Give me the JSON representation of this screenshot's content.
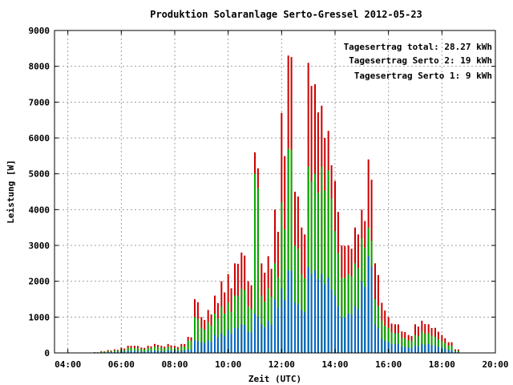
{
  "chart_data": {
    "type": "bar",
    "title": "Produktion Solaranlage Serto-Gressel 2012-05-23",
    "xlabel": "Zeit (UTC)",
    "ylabel": "Leistung [W]",
    "xlim": [
      3.5,
      20.0
    ],
    "ylim": [
      0,
      9000
    ],
    "x_unit": "hour",
    "x_ticks": [
      4,
      6,
      8,
      10,
      12,
      14,
      16,
      18,
      20
    ],
    "x_tick_labels": [
      "04:00",
      "06:00",
      "08:00",
      "10:00",
      "12:00",
      "14:00",
      "16:00",
      "18:00",
      "20:00"
    ],
    "y_ticks": [
      0,
      1000,
      2000,
      3000,
      4000,
      5000,
      6000,
      7000,
      8000,
      9000
    ],
    "y_tick_labels": [
      "0",
      "1000",
      "2000",
      "3000",
      "4000",
      "5000",
      "6000",
      "7000",
      "8000",
      "9000"
    ],
    "grid": true,
    "legend_position": "top-right",
    "legend": [
      {
        "text": "Tagesertrag total: 28.27 kWh",
        "color": "#cc0000"
      },
      {
        "text": "Tagesertrag Serto 2: 19 kWh",
        "color": "#00aa00"
      },
      {
        "text": "Tagesertrag Serto 1: 9 kWh",
        "color": "#0066cc"
      }
    ],
    "series": [
      {
        "name": "Tagesertrag total",
        "color": "#cc0000",
        "points": [
          [
            5.0,
            20
          ],
          [
            5.25,
            50
          ],
          [
            5.5,
            80
          ],
          [
            5.75,
            100
          ],
          [
            6.0,
            150
          ],
          [
            6.25,
            200
          ],
          [
            6.5,
            200
          ],
          [
            6.75,
            150
          ],
          [
            7.0,
            200
          ],
          [
            7.25,
            250
          ],
          [
            7.5,
            200
          ],
          [
            7.75,
            250
          ],
          [
            8.0,
            200
          ],
          [
            8.25,
            250
          ],
          [
            8.5,
            450
          ],
          [
            8.75,
            1500
          ],
          [
            9.0,
            1000
          ],
          [
            9.25,
            1200
          ],
          [
            9.5,
            1600
          ],
          [
            9.75,
            2000
          ],
          [
            10.0,
            2200
          ],
          [
            10.25,
            2500
          ],
          [
            10.5,
            2800
          ],
          [
            10.75,
            2000
          ],
          [
            11.0,
            5600
          ],
          [
            11.25,
            2500
          ],
          [
            11.5,
            2700
          ],
          [
            11.75,
            4000
          ],
          [
            12.0,
            6700
          ],
          [
            12.25,
            8300
          ],
          [
            12.5,
            4500
          ],
          [
            12.75,
            3500
          ],
          [
            13.0,
            8100
          ],
          [
            13.25,
            7500
          ],
          [
            13.5,
            6900
          ],
          [
            13.75,
            6200
          ],
          [
            14.0,
            4800
          ],
          [
            14.25,
            3000
          ],
          [
            14.5,
            3000
          ],
          [
            14.75,
            3500
          ],
          [
            15.0,
            4000
          ],
          [
            15.25,
            5400
          ],
          [
            15.5,
            2500
          ],
          [
            15.75,
            1400
          ],
          [
            16.0,
            1000
          ],
          [
            16.25,
            800
          ],
          [
            16.5,
            600
          ],
          [
            16.75,
            500
          ],
          [
            17.0,
            800
          ],
          [
            17.25,
            900
          ],
          [
            17.5,
            800
          ],
          [
            17.75,
            700
          ],
          [
            18.0,
            500
          ],
          [
            18.25,
            300
          ],
          [
            18.5,
            100
          ]
        ]
      },
      {
        "name": "Tagesertrag Serto 2",
        "color": "#00aa00",
        "points": [
          [
            5.0,
            15
          ],
          [
            5.25,
            35
          ],
          [
            5.5,
            55
          ],
          [
            5.75,
            70
          ],
          [
            6.0,
            100
          ],
          [
            6.25,
            140
          ],
          [
            6.5,
            140
          ],
          [
            6.75,
            110
          ],
          [
            7.0,
            140
          ],
          [
            7.25,
            180
          ],
          [
            7.5,
            150
          ],
          [
            7.75,
            170
          ],
          [
            8.0,
            140
          ],
          [
            8.25,
            180
          ],
          [
            8.5,
            350
          ],
          [
            8.75,
            1000
          ],
          [
            9.0,
            700
          ],
          [
            9.25,
            850
          ],
          [
            9.5,
            1100
          ],
          [
            9.75,
            1300
          ],
          [
            10.0,
            1400
          ],
          [
            10.25,
            1600
          ],
          [
            10.5,
            1800
          ],
          [
            10.75,
            1300
          ],
          [
            11.0,
            5000
          ],
          [
            11.25,
            1600
          ],
          [
            11.5,
            1800
          ],
          [
            11.75,
            2500
          ],
          [
            12.0,
            4200
          ],
          [
            12.25,
            5700
          ],
          [
            12.5,
            3000
          ],
          [
            12.75,
            2200
          ],
          [
            13.0,
            5200
          ],
          [
            13.25,
            5000
          ],
          [
            13.5,
            5200
          ],
          [
            13.75,
            5100
          ],
          [
            14.0,
            3400
          ],
          [
            14.25,
            2100
          ],
          [
            14.5,
            2200
          ],
          [
            14.75,
            2500
          ],
          [
            15.0,
            3200
          ],
          [
            15.25,
            3500
          ],
          [
            15.5,
            1500
          ],
          [
            15.75,
            900
          ],
          [
            16.0,
            700
          ],
          [
            16.25,
            550
          ],
          [
            16.5,
            420
          ],
          [
            16.75,
            350
          ],
          [
            17.0,
            500
          ],
          [
            17.25,
            600
          ],
          [
            17.5,
            550
          ],
          [
            17.75,
            450
          ],
          [
            18.0,
            330
          ],
          [
            18.25,
            200
          ],
          [
            18.5,
            60
          ]
        ]
      },
      {
        "name": "Tagesertrag Serto 1",
        "color": "#0066cc",
        "points": [
          [
            5.0,
            5
          ],
          [
            5.25,
            15
          ],
          [
            5.5,
            25
          ],
          [
            5.75,
            30
          ],
          [
            6.0,
            50
          ],
          [
            6.25,
            60
          ],
          [
            6.5,
            60
          ],
          [
            6.75,
            40
          ],
          [
            7.0,
            60
          ],
          [
            7.25,
            70
          ],
          [
            7.5,
            50
          ],
          [
            7.75,
            80
          ],
          [
            8.0,
            60
          ],
          [
            8.25,
            70
          ],
          [
            8.5,
            100
          ],
          [
            8.75,
            350
          ],
          [
            9.0,
            300
          ],
          [
            9.25,
            350
          ],
          [
            9.5,
            500
          ],
          [
            9.75,
            550
          ],
          [
            10.0,
            650
          ],
          [
            10.25,
            700
          ],
          [
            10.5,
            800
          ],
          [
            10.75,
            600
          ],
          [
            11.0,
            1100
          ],
          [
            11.25,
            800
          ],
          [
            11.5,
            900
          ],
          [
            11.75,
            1500
          ],
          [
            12.0,
            1800
          ],
          [
            12.25,
            2300
          ],
          [
            12.5,
            1400
          ],
          [
            12.75,
            1200
          ],
          [
            13.0,
            2400
          ],
          [
            13.25,
            2300
          ],
          [
            13.5,
            2200
          ],
          [
            13.75,
            2100
          ],
          [
            14.0,
            1600
          ],
          [
            14.25,
            1000
          ],
          [
            14.5,
            1100
          ],
          [
            14.75,
            1300
          ],
          [
            15.0,
            2000
          ],
          [
            15.25,
            2700
          ],
          [
            15.5,
            800
          ],
          [
            15.75,
            400
          ],
          [
            16.0,
            300
          ],
          [
            16.25,
            250
          ],
          [
            16.5,
            180
          ],
          [
            16.75,
            150
          ],
          [
            17.0,
            200
          ],
          [
            17.25,
            250
          ],
          [
            17.5,
            250
          ],
          [
            17.75,
            200
          ],
          [
            18.0,
            150
          ],
          [
            18.25,
            80
          ],
          [
            18.5,
            25
          ]
        ]
      }
    ]
  }
}
